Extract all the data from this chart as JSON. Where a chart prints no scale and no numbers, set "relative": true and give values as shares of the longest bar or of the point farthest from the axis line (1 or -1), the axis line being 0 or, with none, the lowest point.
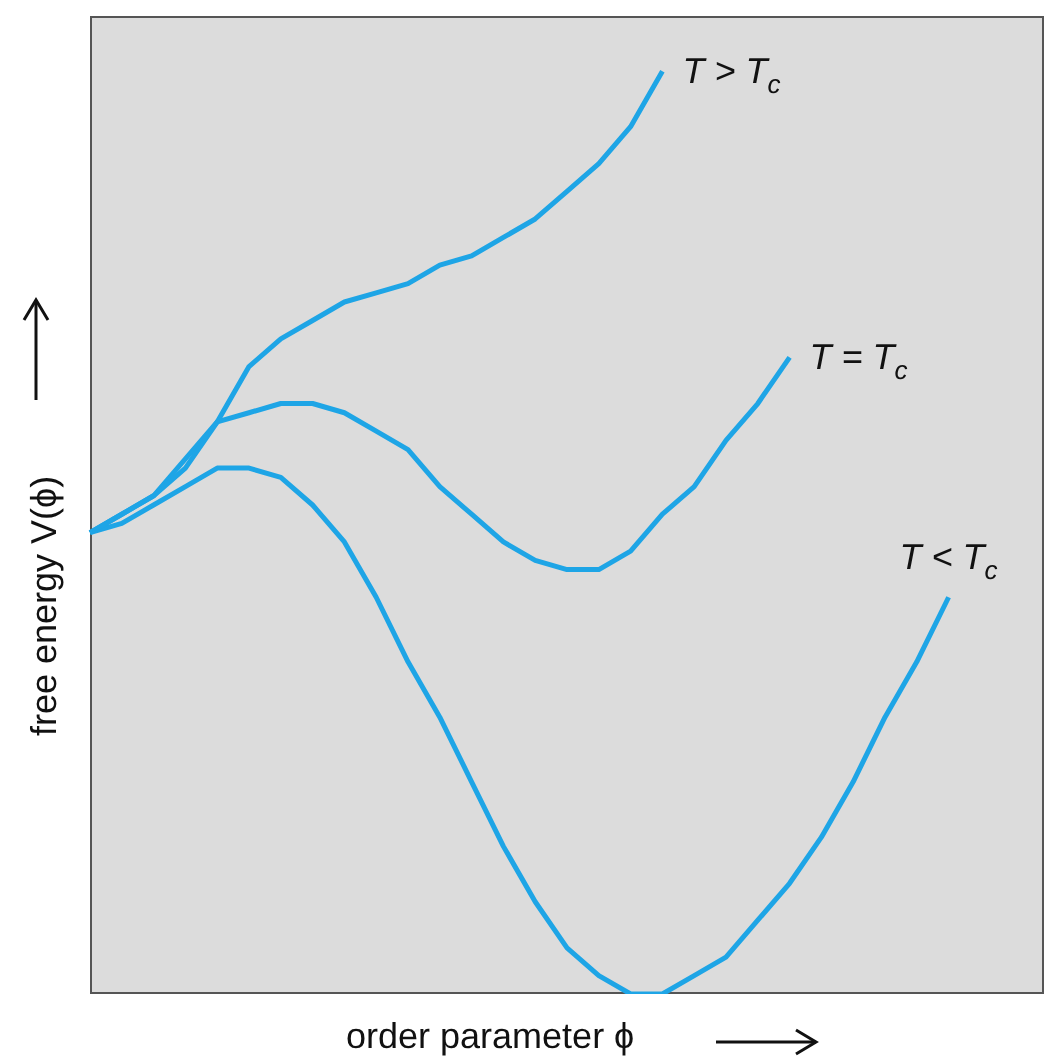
{
  "chart_data": {
    "type": "line",
    "relative": true,
    "xlabel": "order parameter ϕ",
    "ylabel": "free energy V(ϕ)",
    "legend": false,
    "marker": "none",
    "line_style": "solid",
    "categories": [
      null,
      null,
      null,
      null,
      null,
      null,
      null,
      null,
      null,
      null,
      null,
      null,
      null,
      null,
      null,
      null,
      null,
      null,
      null,
      null,
      null,
      null,
      null,
      null,
      null,
      null,
      null,
      null,
      null,
      null,
      null
    ],
    "series": [
      {
        "name": "T > T$_{c}$",
        "color": "#1ea5e6",
        "values": [
          0.5,
          0.52,
          0.54,
          0.57,
          0.62,
          0.68,
          0.71,
          0.73,
          0.75,
          0.76,
          0.77,
          0.79,
          0.8,
          0.82,
          0.84,
          0.87,
          0.9,
          0.94,
          1.0,
          null,
          null,
          null,
          null,
          null,
          null,
          null,
          null,
          null,
          null,
          null,
          null
        ]
      },
      {
        "name": "T = T$_{c}$",
        "color": "#1ea5e6",
        "values": [
          0.5,
          0.52,
          0.54,
          0.58,
          0.62,
          0.63,
          0.64,
          0.64,
          0.63,
          0.61,
          0.59,
          0.55,
          0.52,
          0.49,
          0.47,
          0.46,
          0.46,
          0.48,
          0.52,
          0.55,
          0.6,
          0.64,
          0.69,
          null,
          null,
          null,
          null,
          null,
          null,
          null,
          null
        ]
      },
      {
        "name": "T < T$_{c}$",
        "color": "#1ea5e6",
        "values": [
          0.5,
          0.51,
          0.53,
          0.55,
          0.57,
          0.57,
          0.56,
          0.53,
          0.49,
          0.43,
          0.36,
          0.3,
          0.23,
          0.16,
          0.1,
          0.05,
          0.02,
          0.0,
          0.0,
          0.02,
          0.04,
          0.08,
          0.12,
          0.17,
          0.23,
          0.3,
          0.36,
          0.43,
          null,
          null,
          null
        ]
      }
    ]
  }
}
